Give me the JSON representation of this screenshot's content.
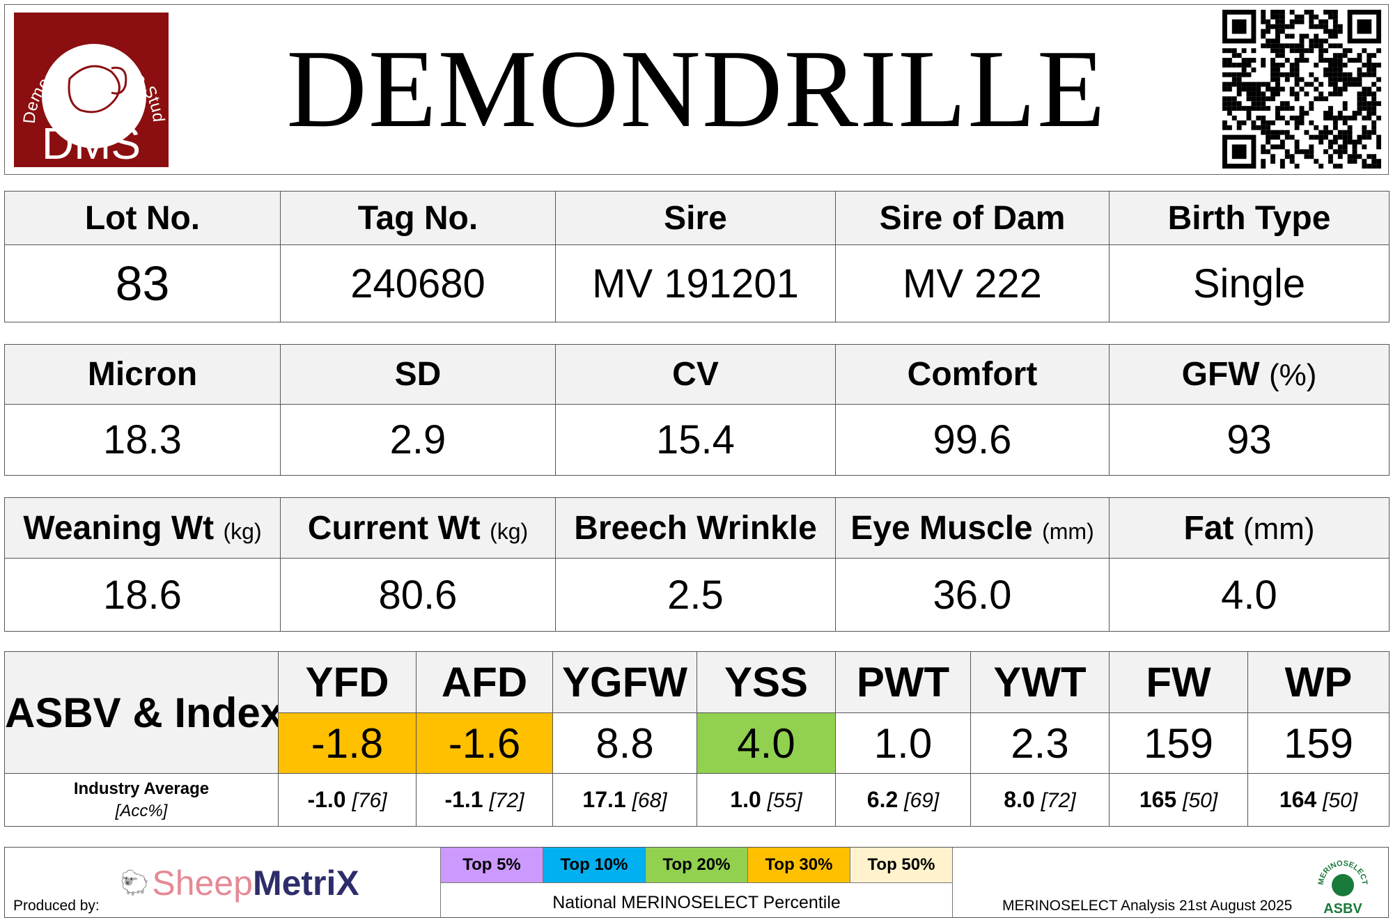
{
  "header": {
    "title": "DEMONDRILLE",
    "logo_text": "Demondrille Merino Stud",
    "logo_initials": "DMS",
    "logo_color": "#8b0f10"
  },
  "table1": {
    "headers": [
      "Lot No.",
      "Tag No.",
      "Sire",
      "Sire of Dam",
      "Birth Type"
    ],
    "values": [
      "83",
      "240680",
      "MV 191201",
      "MV 222",
      "Single"
    ]
  },
  "table2": {
    "headers": [
      {
        "label": "Micron"
      },
      {
        "label": "SD"
      },
      {
        "label": "CV"
      },
      {
        "label": "Comfort"
      },
      {
        "label": "GFW",
        "unit": "(%)"
      }
    ],
    "values": [
      "18.3",
      "2.9",
      "15.4",
      "99.6",
      "93"
    ]
  },
  "table3": {
    "headers": [
      {
        "label": "Weaning Wt",
        "unit": "(kg)"
      },
      {
        "label": "Current Wt",
        "unit": "(kg)"
      },
      {
        "label": "Breech Wrinkle"
      },
      {
        "label": "Eye Muscle",
        "unit": "(mm)"
      },
      {
        "label": "Fat",
        "unit": "(mm)"
      }
    ],
    "values": [
      "18.6",
      "80.6",
      "2.5",
      "36.0",
      "4.0"
    ]
  },
  "asbv": {
    "label": "ASBV & Index",
    "industry_label": "Industry Average",
    "acc_label": "[Acc%]",
    "traits": [
      {
        "name": "YFD",
        "value": "-1.8",
        "avg": "-1.0",
        "acc": "[76]",
        "color": "#ffc000"
      },
      {
        "name": "AFD",
        "value": "-1.6",
        "avg": "-1.1",
        "acc": "[72]",
        "color": "#ffc000"
      },
      {
        "name": "YGFW",
        "value": "8.8",
        "avg": "17.1",
        "acc": "[68]",
        "color": "#ffffff"
      },
      {
        "name": "YSS",
        "value": "4.0",
        "avg": "1.0",
        "acc": "[55]",
        "color": "#92d050"
      },
      {
        "name": "PWT",
        "value": "1.0",
        "avg": "6.2",
        "acc": "[69]",
        "color": "#ffffff"
      },
      {
        "name": "YWT",
        "value": "2.3",
        "avg": "8.0",
        "acc": "[72]",
        "color": "#ffffff"
      },
      {
        "name": "FW",
        "value": "159",
        "avg": "165",
        "acc": "[50]",
        "color": "#ffffff"
      },
      {
        "name": "WP",
        "value": "159",
        "avg": "164",
        "acc": "[50]",
        "color": "#ffffff"
      }
    ]
  },
  "footer": {
    "produced_by": "Produced by:",
    "brand_a": "Sheep",
    "brand_b": "MetriX",
    "legend": [
      {
        "label": "Top 5%",
        "color": "#cc99ff"
      },
      {
        "label": "Top 10%",
        "color": "#00b0f0"
      },
      {
        "label": "Top 20%",
        "color": "#92d050"
      },
      {
        "label": "Top 30%",
        "color": "#ffc000"
      },
      {
        "label": "Top 50%",
        "color": "#fff2cc"
      }
    ],
    "legend_caption": "National MERINOSELECT Percentile",
    "analysis": "MERINOSELECT Analysis 21st August 2025",
    "badge_top": "MERINOSELECT",
    "badge_bottom": "ASBV"
  }
}
